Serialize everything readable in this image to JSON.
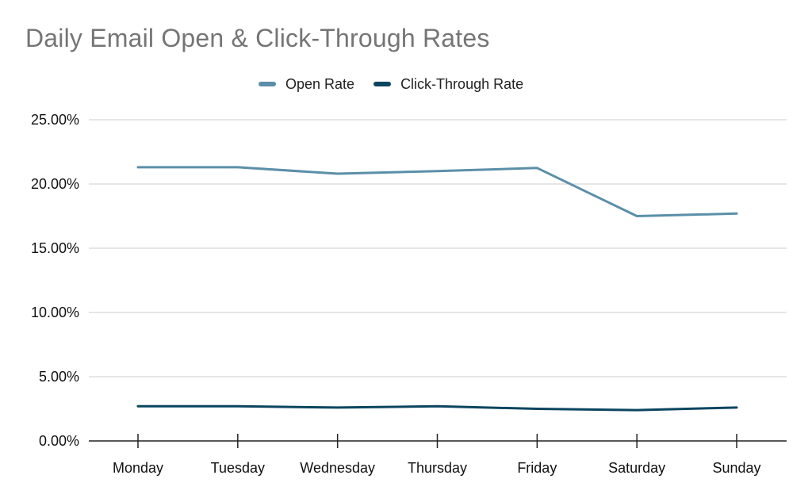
{
  "chart_data": {
    "type": "line",
    "title": "Daily Email Open & Click-Through Rates",
    "xlabel": "",
    "ylabel": "",
    "categories": [
      "Monday",
      "Tuesday",
      "Wednesday",
      "Thursday",
      "Friday",
      "Saturday",
      "Sunday"
    ],
    "series": [
      {
        "name": "Open Rate",
        "color": "#5b8fa8",
        "values": [
          21.3,
          21.3,
          20.8,
          21.0,
          21.25,
          17.5,
          17.7
        ]
      },
      {
        "name": "Click-Through Rate",
        "color": "#0b4560",
        "values": [
          2.7,
          2.7,
          2.6,
          2.7,
          2.5,
          2.4,
          2.6
        ]
      }
    ],
    "ylim": [
      0,
      25
    ],
    "yticks": [
      "0.00%",
      "5.00%",
      "10.00%",
      "15.00%",
      "20.00%",
      "25.00%"
    ],
    "ytick_values": [
      0,
      5,
      10,
      15,
      20,
      25
    ],
    "grid": true,
    "legend_position": "top-center"
  }
}
